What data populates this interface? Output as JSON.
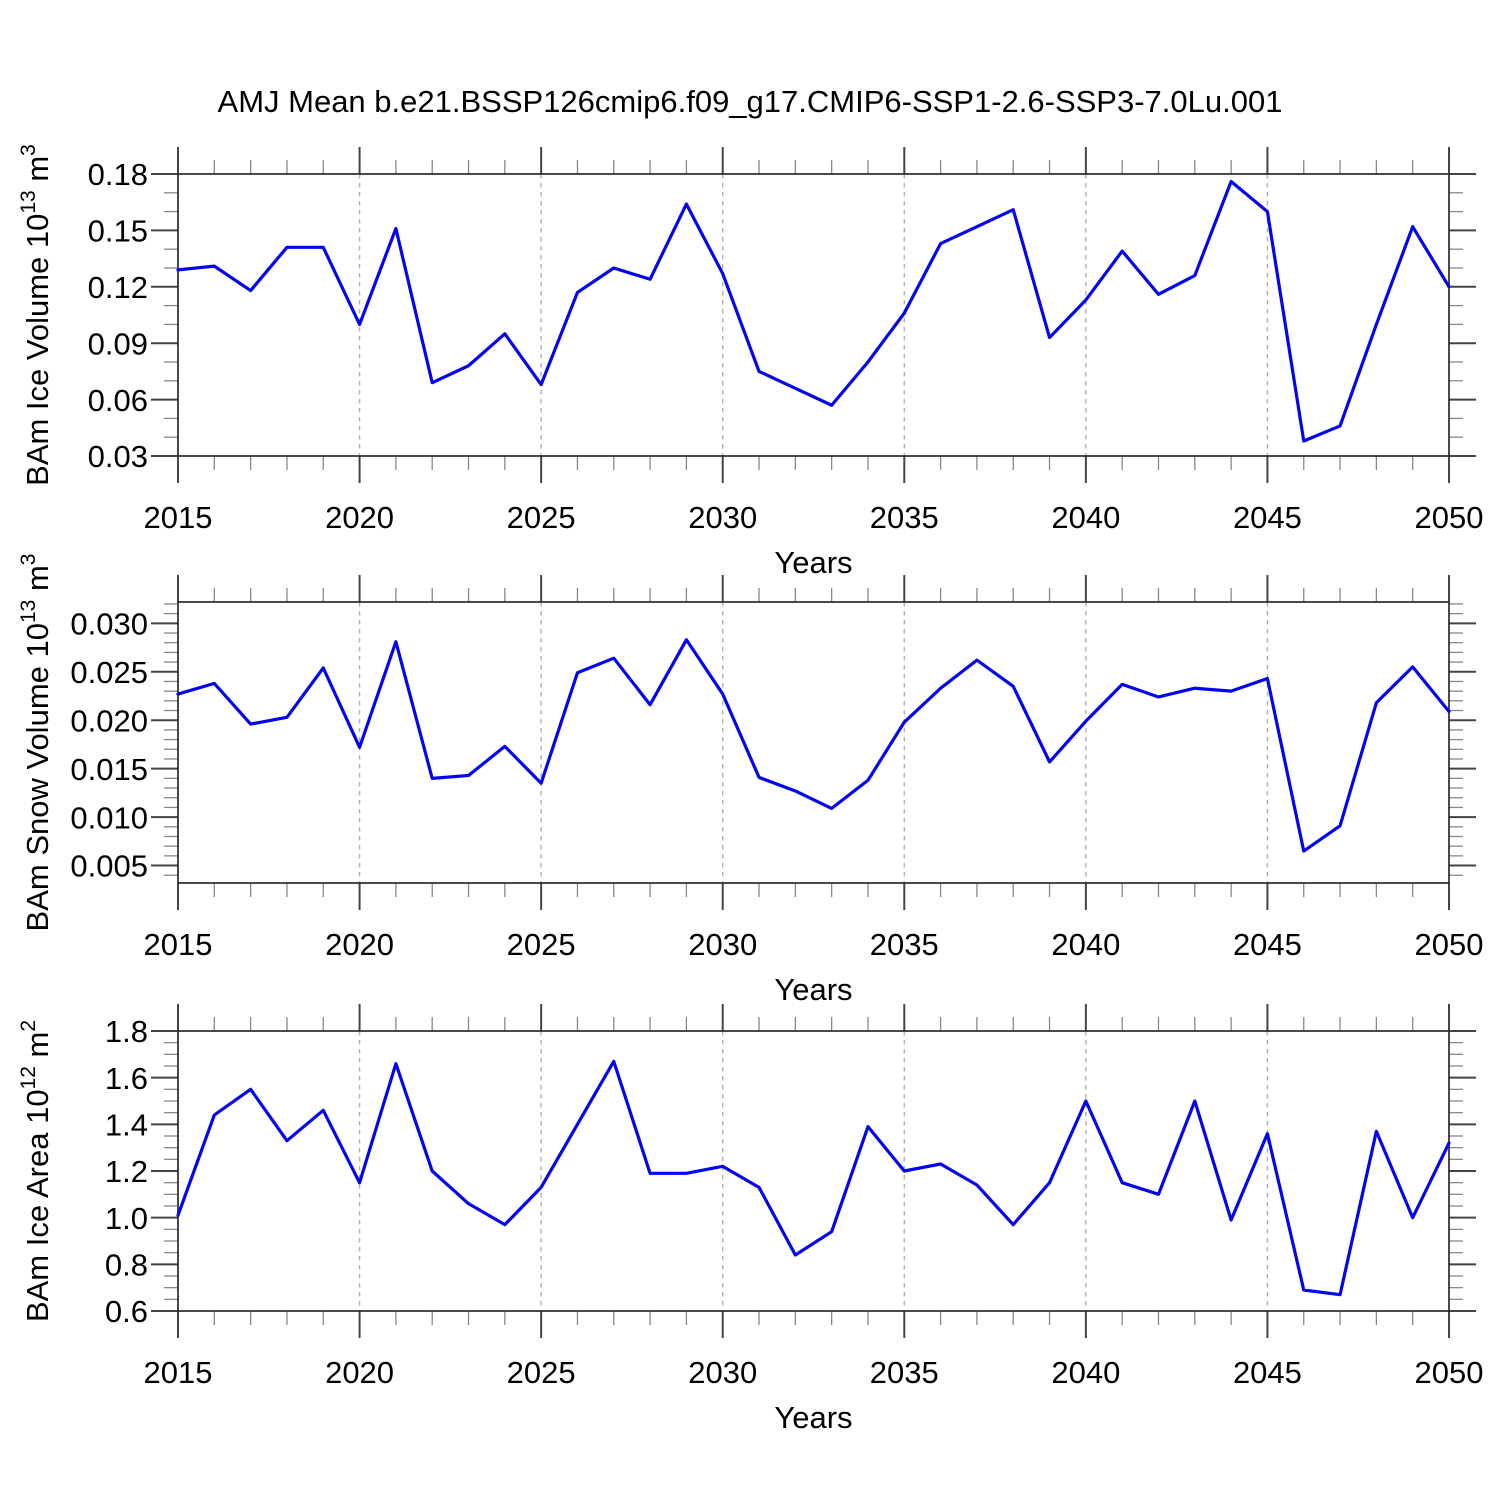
{
  "title": "AMJ Mean b.e21.BSSP126cmip6.f09_g17.CMIP6-SSP1-2.6-SSP3-7.0Lu.001",
  "colors": {
    "line": "#0404ee",
    "grid": "#b0b0b0",
    "frame": "#2a2a2a",
    "tick_major": "#444444",
    "tick_minor": "#888888",
    "text": "#000000"
  },
  "x_axis": {
    "label": "Years",
    "min": 2015,
    "max": 2050,
    "major_step": 5,
    "minor_step": 1,
    "major_labels": [
      "2015",
      "2020",
      "2025",
      "2030",
      "2035",
      "2040",
      "2045",
      "2050"
    ],
    "grid_years": [
      2020,
      2025,
      2030,
      2035,
      2040,
      2045
    ],
    "years": [
      2015,
      2016,
      2017,
      2018,
      2019,
      2020,
      2021,
      2022,
      2023,
      2024,
      2025,
      2026,
      2027,
      2028,
      2029,
      2030,
      2031,
      2032,
      2033,
      2034,
      2035,
      2036,
      2037,
      2038,
      2039,
      2040,
      2041,
      2042,
      2043,
      2044,
      2045,
      2046,
      2047,
      2048,
      2049,
      2050
    ]
  },
  "chart_data": [
    {
      "type": "line",
      "ylabel_text": "BAm Ice Volume 10^13 m^3",
      "ylabel_parts": [
        {
          "t": "BAm Ice Volume 10"
        },
        {
          "t": "13",
          "sup": true
        },
        {
          "t": " m"
        },
        {
          "t": "3",
          "sup": true
        }
      ],
      "xlabel": "Years",
      "ylim": [
        0.03,
        0.18
      ],
      "yticks": [
        0.03,
        0.06,
        0.09,
        0.12,
        0.15,
        0.18
      ],
      "ytick_labels": [
        "0.03",
        "0.06",
        "0.09",
        "0.12",
        "0.15",
        "0.18"
      ],
      "y_major_step": 0.03,
      "y_minor_step": 0.01,
      "grid": "vertical-dashed",
      "legend": "none",
      "values": [
        0.129,
        0.131,
        0.118,
        0.141,
        0.141,
        0.1,
        0.151,
        0.069,
        0.078,
        0.095,
        0.068,
        0.117,
        0.13,
        0.124,
        0.164,
        0.127,
        0.075,
        0.066,
        0.057,
        0.08,
        0.106,
        0.143,
        0.152,
        0.161,
        0.093,
        0.113,
        0.139,
        0.116,
        0.126,
        0.176,
        0.16,
        0.038,
        0.046,
        0.1,
        0.152,
        0.12
      ]
    },
    {
      "type": "line",
      "ylabel_text": "BAm Snow Volume 10^13 m^3",
      "ylabel_parts": [
        {
          "t": "BAm Snow Volume 10"
        },
        {
          "t": "13",
          "sup": true
        },
        {
          "t": " m"
        },
        {
          "t": "3",
          "sup": true
        }
      ],
      "xlabel": "Years",
      "ylim": [
        0.0032,
        0.0322
      ],
      "yticks": [
        0.005,
        0.01,
        0.015,
        0.02,
        0.025,
        0.03
      ],
      "ytick_labels": [
        "0.005",
        "0.010",
        "0.015",
        "0.020",
        "0.025",
        "0.030"
      ],
      "y_major_step": 0.005,
      "y_minor_step": 0.001,
      "grid": "vertical-dashed",
      "legend": "none",
      "values": [
        0.0227,
        0.0238,
        0.0196,
        0.0203,
        0.0254,
        0.0172,
        0.0281,
        0.014,
        0.0143,
        0.0173,
        0.0135,
        0.0249,
        0.0264,
        0.0216,
        0.0283,
        0.0227,
        0.0141,
        0.0127,
        0.0109,
        0.0138,
        0.0198,
        0.0233,
        0.0262,
        0.0235,
        0.0157,
        0.0199,
        0.0237,
        0.0224,
        0.0233,
        0.023,
        0.0243,
        0.0065,
        0.0091,
        0.0218,
        0.0255,
        0.0209
      ]
    },
    {
      "type": "line",
      "ylabel_text": "BAm Ice Area 10^12 m^2",
      "ylabel_parts": [
        {
          "t": "BAm Ice Area 10"
        },
        {
          "t": "12",
          "sup": true
        },
        {
          "t": " m"
        },
        {
          "t": "2",
          "sup": true
        }
      ],
      "xlabel": "Years",
      "ylim": [
        0.6,
        1.8
      ],
      "yticks": [
        0.6,
        0.8,
        1.0,
        1.2,
        1.4,
        1.6,
        1.8
      ],
      "ytick_labels": [
        "0.6",
        "0.8",
        "1.0",
        "1.2",
        "1.4",
        "1.6",
        "1.8"
      ],
      "y_major_step": 0.2,
      "y_minor_step": 0.05,
      "grid": "vertical-dashed",
      "legend": "none",
      "values": [
        1.01,
        1.44,
        1.55,
        1.33,
        1.46,
        1.15,
        1.66,
        1.2,
        1.06,
        0.97,
        1.13,
        1.4,
        1.67,
        1.19,
        1.19,
        1.22,
        1.13,
        0.84,
        0.94,
        1.39,
        1.2,
        1.23,
        1.14,
        0.97,
        1.15,
        1.5,
        1.15,
        1.1,
        1.5,
        0.99,
        1.36,
        0.69,
        0.67,
        1.37,
        1.0,
        1.32
      ]
    }
  ]
}
